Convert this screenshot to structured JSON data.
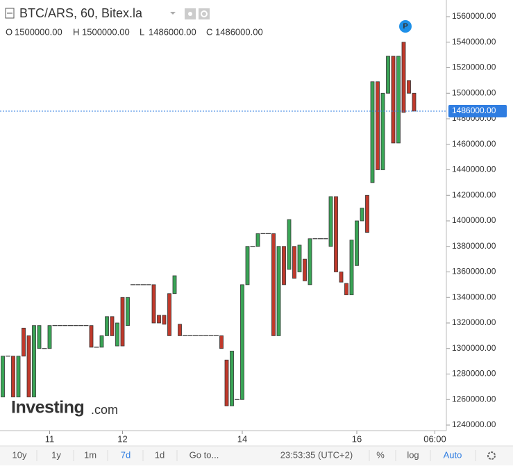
{
  "chart_data": {
    "type": "candlestick",
    "title": "BTC/ARS, 60, Bitex.la",
    "ohlc_legend": [
      {
        "label": "O",
        "value": "1500000.00"
      },
      {
        "label": "H",
        "value": "1500000.00"
      },
      {
        "label": "L",
        "value": "1486000.00"
      },
      {
        "label": "C",
        "value": "1486000.00"
      }
    ],
    "categories": [
      null,
      null,
      null,
      null,
      null,
      null,
      null,
      null,
      null,
      "11",
      null,
      null,
      null,
      null,
      null,
      null,
      null,
      null,
      null,
      null,
      null,
      null,
      null,
      "12",
      null,
      null,
      null,
      null,
      null,
      null,
      null,
      null,
      null,
      null,
      null,
      null,
      null,
      null,
      null,
      null,
      null,
      null,
      null,
      null,
      null,
      null,
      "14",
      null,
      null,
      null,
      null,
      null,
      null,
      null,
      null,
      null,
      null,
      null,
      null,
      null,
      null,
      null,
      null,
      null,
      null,
      null,
      null,
      null,
      "16",
      null,
      null,
      null,
      null,
      null,
      null,
      null,
      null,
      null,
      null,
      null,
      null,
      null,
      null,
      "06:00"
    ],
    "open": [
      1262000,
      1294000,
      1294000,
      1262000,
      1316000,
      1310000,
      1262000,
      1300000,
      1300000,
      1300000,
      1318000,
      1318000,
      1318000,
      1318000,
      1318000,
      1318000,
      1318000,
      1318000,
      1301000,
      1301000,
      1310000,
      1325000,
      1302000,
      1340000,
      1318000,
      1350000,
      1350000,
      1350000,
      1350000,
      1350000,
      1326000,
      1326000,
      1343000,
      1343000,
      1319000,
      1310000,
      1310000,
      1310000,
      1310000,
      1310000,
      1310000,
      1310000,
      1310000,
      1291000,
      1255000,
      1260000,
      1260000,
      1350000,
      1380000,
      1380000,
      1390000,
      1390000,
      1390000,
      1310000,
      1380000,
      1362000,
      1380000,
      1360000,
      1370000,
      1350000,
      1386000,
      1386000,
      1386000,
      1380000,
      1419000,
      1360000,
      1351000,
      1342000,
      1365000,
      1400000,
      1420000,
      1430000,
      1509000,
      1440000,
      1500000,
      1529000,
      1461000,
      1540000,
      1510000,
      1500000,
      null,
      null,
      null,
      null
    ],
    "high": [
      1294000,
      1294000,
      1294000,
      1294000,
      1316000,
      1310000,
      1318000,
      1318000,
      1300000,
      1318000,
      1318000,
      1318000,
      1318000,
      1318000,
      1318000,
      1318000,
      1318000,
      1318000,
      1301000,
      1310000,
      1325000,
      1325000,
      1320000,
      1340000,
      1340000,
      1350000,
      1350000,
      1350000,
      1350000,
      1350000,
      1326000,
      1326000,
      1343000,
      1357000,
      1319000,
      1310000,
      1310000,
      1310000,
      1310000,
      1310000,
      1310000,
      1310000,
      1310000,
      1291000,
      1298000,
      1260000,
      1350000,
      1380000,
      1380000,
      1390000,
      1390000,
      1390000,
      1390000,
      1380000,
      1380000,
      1401000,
      1380000,
      1381000,
      1370000,
      1386000,
      1386000,
      1386000,
      1386000,
      1419000,
      1419000,
      1360000,
      1351000,
      1385000,
      1400000,
      1410000,
      1420000,
      1509000,
      1509000,
      1500000,
      1529000,
      1529000,
      1529000,
      1540000,
      1510000,
      1500000,
      null,
      null,
      null,
      null
    ],
    "low": [
      1262000,
      1294000,
      1262000,
      1262000,
      1294000,
      1262000,
      1262000,
      1300000,
      1300000,
      1300000,
      1318000,
      1318000,
      1318000,
      1318000,
      1318000,
      1318000,
      1318000,
      1301000,
      1301000,
      1301000,
      1310000,
      1310000,
      1302000,
      1302000,
      1318000,
      1350000,
      1350000,
      1350000,
      1350000,
      1320000,
      1320000,
      1319000,
      1310000,
      1343000,
      1310000,
      1310000,
      1310000,
      1310000,
      1310000,
      1310000,
      1310000,
      1310000,
      1300000,
      1255000,
      1255000,
      1260000,
      1260000,
      1350000,
      1380000,
      1380000,
      1390000,
      1390000,
      1310000,
      1310000,
      1350000,
      1362000,
      1355000,
      1360000,
      1353000,
      1350000,
      1386000,
      1386000,
      1386000,
      1380000,
      1360000,
      1352000,
      1342000,
      1342000,
      1365000,
      1400000,
      1391000,
      1430000,
      1440000,
      1440000,
      1500000,
      1461000,
      1461000,
      1485000,
      1500000,
      1486000,
      null,
      null,
      null,
      null
    ],
    "close": [
      1294000,
      1294000,
      1262000,
      1294000,
      1294000,
      1262000,
      1318000,
      1318000,
      1300000,
      1318000,
      1318000,
      1318000,
      1318000,
      1318000,
      1318000,
      1318000,
      1318000,
      1301000,
      1301000,
      1310000,
      1325000,
      1310000,
      1320000,
      1302000,
      1340000,
      1350000,
      1350000,
      1350000,
      1350000,
      1320000,
      1320000,
      1319000,
      1310000,
      1357000,
      1310000,
      1310000,
      1310000,
      1310000,
      1310000,
      1310000,
      1310000,
      1310000,
      1300000,
      1255000,
      1298000,
      1260000,
      1350000,
      1380000,
      1380000,
      1390000,
      1390000,
      1390000,
      1310000,
      1380000,
      1350000,
      1401000,
      1355000,
      1381000,
      1353000,
      1386000,
      1386000,
      1386000,
      1386000,
      1419000,
      1360000,
      1352000,
      1342000,
      1385000,
      1400000,
      1410000,
      1391000,
      1509000,
      1440000,
      1500000,
      1529000,
      1461000,
      1529000,
      1485000,
      1500000,
      1486000,
      null,
      null,
      null,
      null
    ],
    "up_color": "#3aa556",
    "down_color": "#c0392b",
    "ylim": [
      1240000,
      1560000
    ],
    "yticks": [
      {
        "value": 1240000,
        "label": "1240000.00"
      },
      {
        "value": 1260000,
        "label": "1260000.00"
      },
      {
        "value": 1280000,
        "label": "1280000.00"
      },
      {
        "value": 1300000,
        "label": "1300000.00"
      },
      {
        "value": 1320000,
        "label": "1320000.00"
      },
      {
        "value": 1340000,
        "label": "1340000.00"
      },
      {
        "value": 1360000,
        "label": "1360000.00"
      },
      {
        "value": 1380000,
        "label": "1380000.00"
      },
      {
        "value": 1400000,
        "label": "1400000.00"
      },
      {
        "value": 1420000,
        "label": "1420000.00"
      },
      {
        "value": 1440000,
        "label": "1440000.00"
      },
      {
        "value": 1460000,
        "label": "1460000.00"
      },
      {
        "value": 1480000,
        "label": "1480000.00"
      },
      {
        "value": 1500000,
        "label": "1500000.00"
      },
      {
        "value": 1520000,
        "label": "1520000.00"
      },
      {
        "value": 1540000,
        "label": "1540000.00"
      },
      {
        "value": 1560000,
        "label": "1560000.00"
      }
    ],
    "last_price": {
      "value": 1486000,
      "label": "1486000.00"
    },
    "marker": "P",
    "watermark": {
      "brand": "Investing",
      "suffix": ".com"
    },
    "toolbar": {
      "ranges": [
        "10y",
        "1y",
        "1m",
        "7d",
        "1d"
      ],
      "active_range": "7d",
      "goto": "Go to...",
      "time": "23:53:35 (UTC+2)",
      "percent": "%",
      "log": "log",
      "auto": "Auto",
      "auto_active": true
    }
  }
}
